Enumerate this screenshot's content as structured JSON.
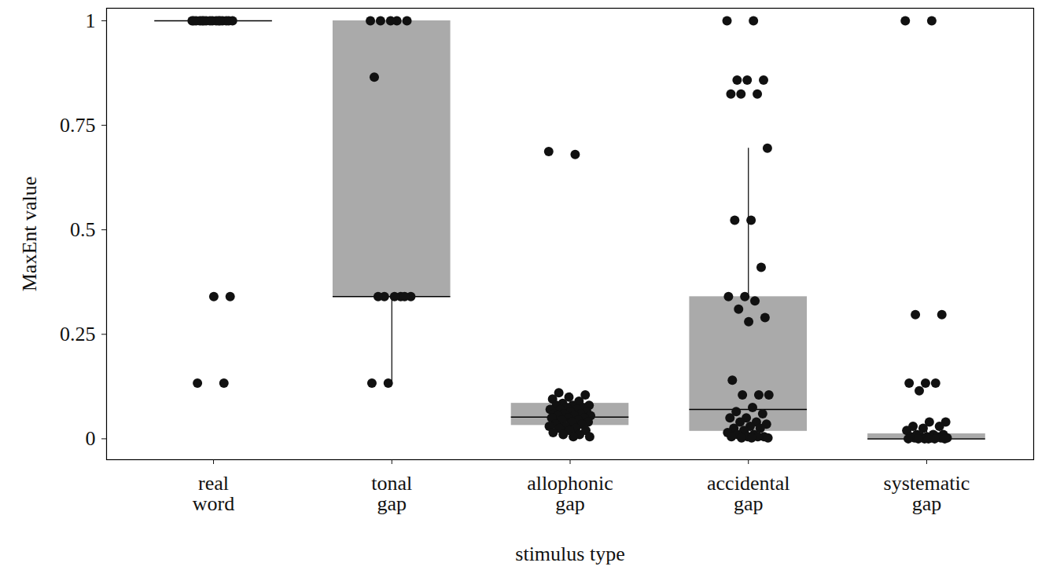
{
  "chart_data": {
    "type": "box",
    "x_label": "stimulus type",
    "y_label": "MaxEnt value",
    "categories": [
      "real word",
      "tonal gap",
      "allophonic gap",
      "accidental gap",
      "systematic gap"
    ],
    "color": "#aaaaaa",
    "ylim": [
      -0.05,
      1.03
    ],
    "yticks": [
      0,
      0.25,
      0.5,
      0.75,
      1
    ],
    "boxes": [
      {
        "q1": 1,
        "median": 1,
        "q3": 1,
        "whisker_low": 1,
        "whisker_high": 1
      },
      {
        "q1": 0.34,
        "median": 0.34,
        "q3": 1,
        "whisker_low": 0.133,
        "whisker_high": 1
      },
      {
        "q1": 0.032,
        "median": 0.052,
        "q3": 0.085,
        "whisker_low": 0.005,
        "whisker_high": 0.11
      },
      {
        "q1": 0.018,
        "median": 0.07,
        "q3": 0.34,
        "whisker_low": 0.002,
        "whisker_high": 0.695
      },
      {
        "q1": 0,
        "median": 0,
        "q3": 0.012,
        "whisker_low": 0,
        "whisker_high": 0.03
      }
    ],
    "points": [
      [
        1,
        1,
        1,
        1,
        1,
        1,
        1,
        1,
        1,
        1,
        1,
        1,
        1,
        1,
        1,
        1,
        0.34,
        0.34,
        0.133,
        0.133
      ],
      [
        1,
        1,
        1,
        1,
        1,
        0.865,
        0.34,
        0.34,
        0.34,
        0.34,
        0.34,
        0.34,
        0.133,
        0.133
      ],
      [
        0.687,
        0.68,
        0.11,
        0.105,
        0.1,
        0.095,
        0.09,
        0.085,
        0.08,
        0.08,
        0.08,
        0.075,
        0.075,
        0.07,
        0.07,
        0.07,
        0.065,
        0.065,
        0.06,
        0.06,
        0.06,
        0.055,
        0.055,
        0.055,
        0.05,
        0.05,
        0.05,
        0.045,
        0.045,
        0.04,
        0.04,
        0.035,
        0.035,
        0.03,
        0.03,
        0.025,
        0.025,
        0.02,
        0.02,
        0.015,
        0.01,
        0.01,
        0.005,
        0.005
      ],
      [
        1,
        1,
        0.858,
        0.858,
        0.858,
        0.825,
        0.825,
        0.825,
        0.695,
        0.523,
        0.523,
        0.41,
        0.34,
        0.34,
        0.33,
        0.31,
        0.29,
        0.28,
        0.14,
        0.105,
        0.105,
        0.105,
        0.075,
        0.065,
        0.06,
        0.05,
        0.05,
        0.04,
        0.04,
        0.035,
        0.03,
        0.025,
        0.025,
        0.02,
        0.015,
        0.01,
        0.01,
        0.005,
        0.005,
        0.005,
        0.005,
        0.002,
        0.002,
        0.002
      ],
      [
        1,
        1,
        0.297,
        0.297,
        0.133,
        0.133,
        0.133,
        0.115,
        0.04,
        0.04,
        0.03,
        0.03,
        0.025,
        0.02,
        0.01,
        0.01,
        0.01,
        0.005,
        0.005,
        0.005,
        0.005,
        0.002,
        0.002,
        0.002,
        0.002,
        0,
        0,
        0,
        0,
        0,
        0
      ]
    ]
  }
}
